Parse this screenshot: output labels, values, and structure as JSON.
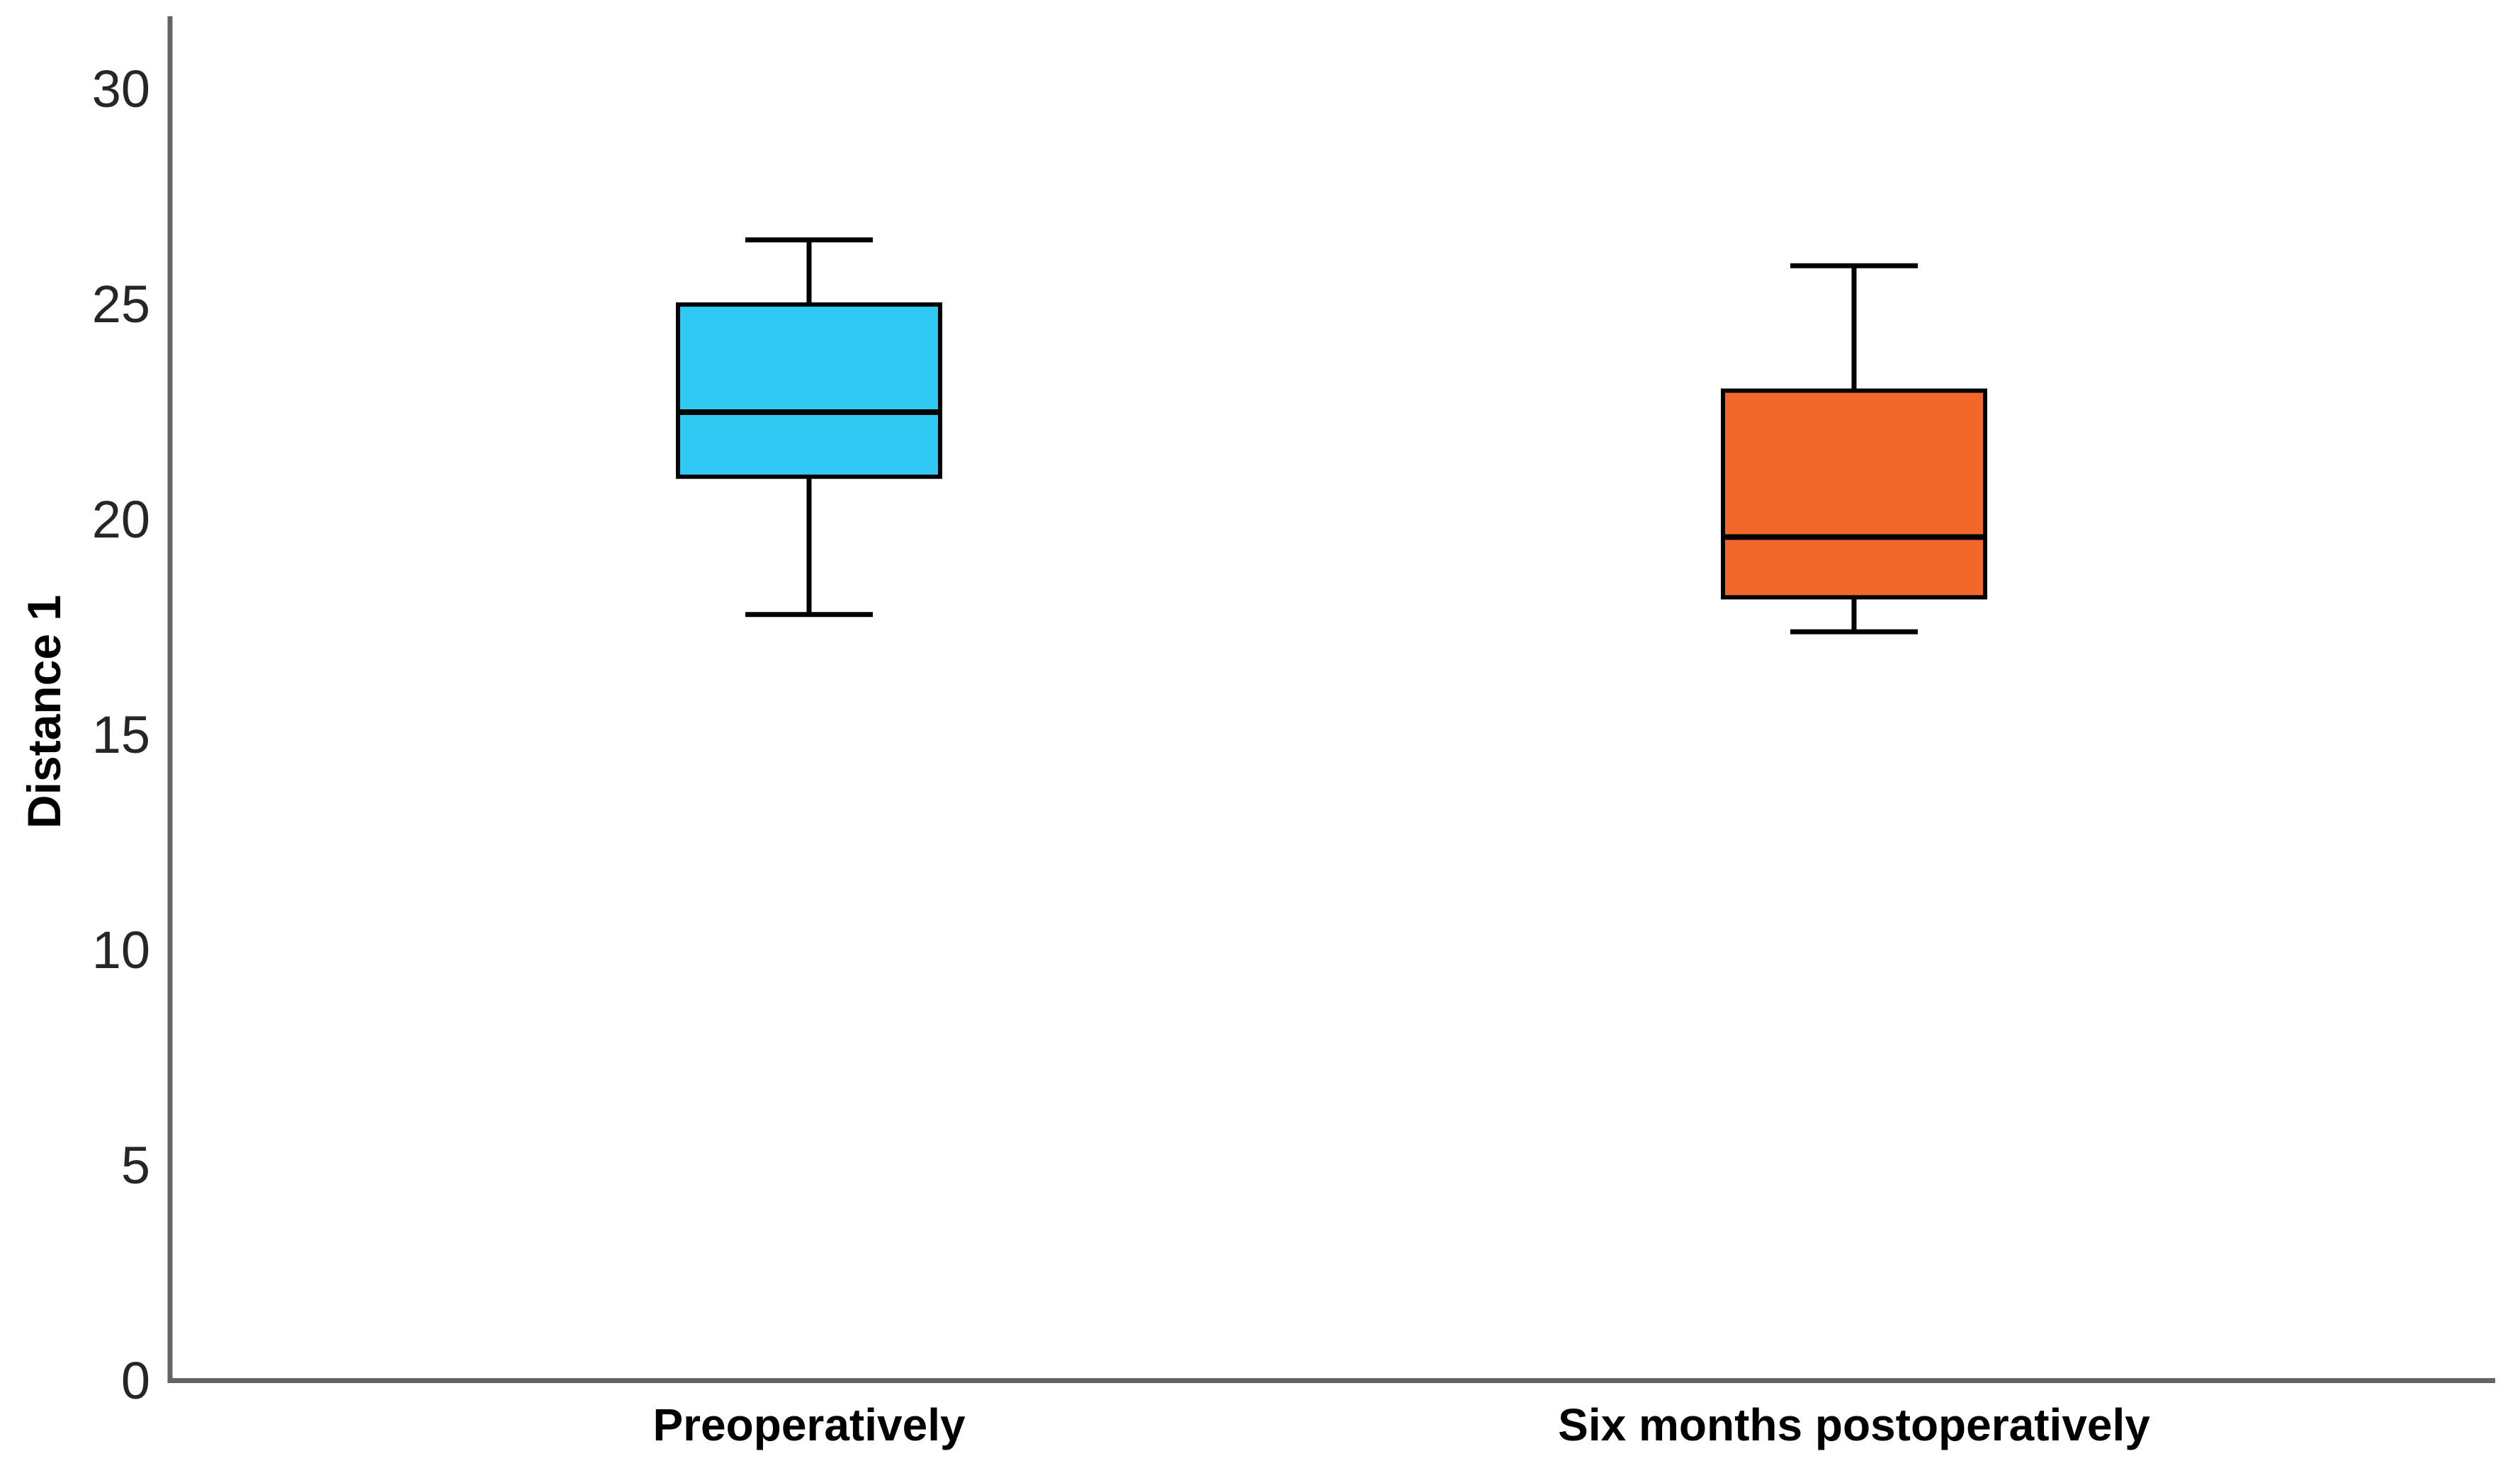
{
  "chart_data": {
    "type": "box",
    "title": "",
    "ylabel": "Distance 1",
    "xlabel": "",
    "ylim": [
      0,
      30
    ],
    "yticks": [
      0,
      5,
      10,
      15,
      20,
      25,
      30
    ],
    "grid": false,
    "legend": "none",
    "categories": [
      "Preoperatively",
      "Six months postoperatively"
    ],
    "series": [
      {
        "name": "Preoperatively",
        "box_color": "#2EC8F2",
        "min": 17.8,
        "q1": 21.0,
        "median": 22.5,
        "q3": 25.0,
        "max": 26.5,
        "outliers": []
      },
      {
        "name": "Six months postoperatively",
        "box_color": "#F2682C",
        "min": 17.4,
        "q1": 18.2,
        "median": 19.6,
        "q3": 23.0,
        "max": 25.9,
        "outliers": []
      }
    ]
  },
  "colors": {
    "axis_line": "#646464",
    "box_outline": "#000000",
    "tick_text": "#262626",
    "label_text": "#000000",
    "background": "#ffffff"
  }
}
